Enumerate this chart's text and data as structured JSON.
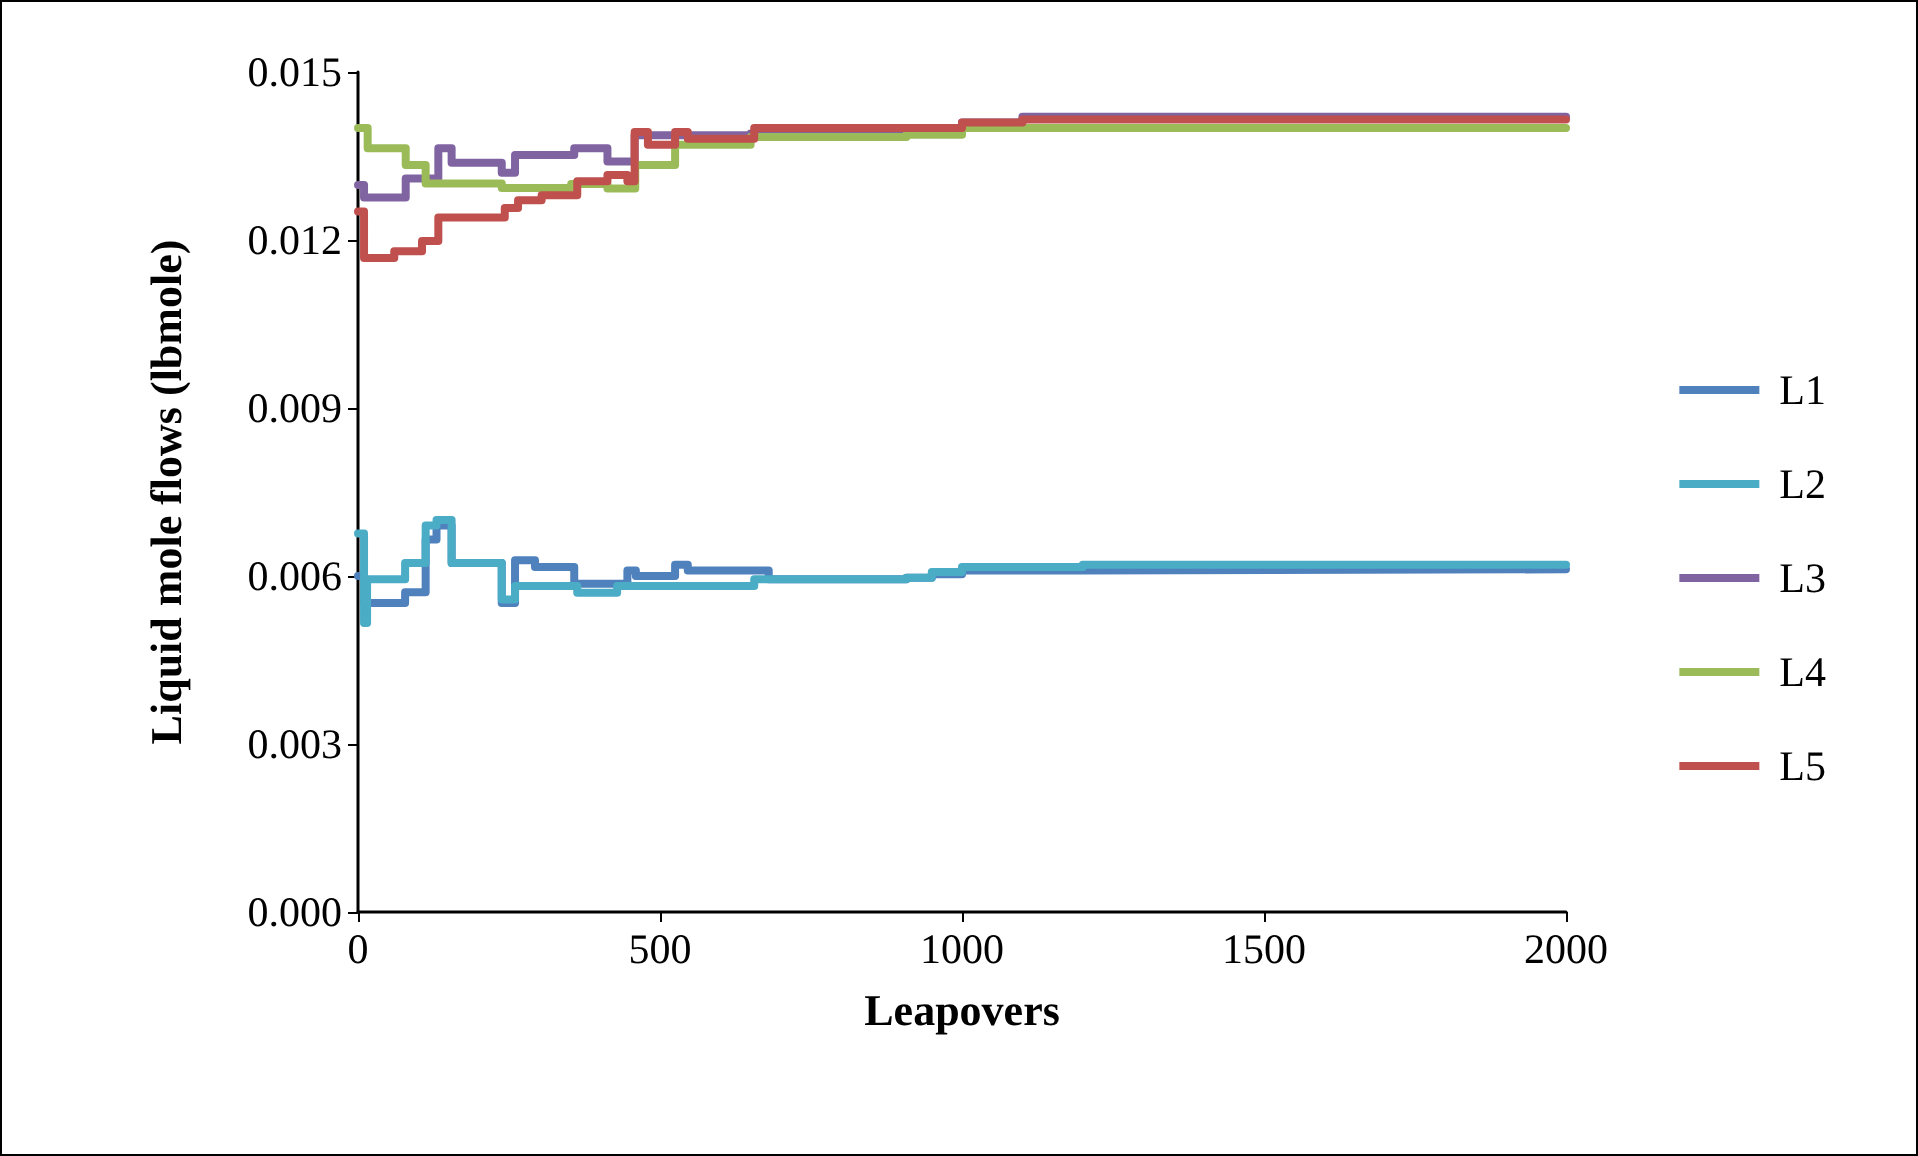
{
  "chart_data": {
    "type": "step",
    "xlabel": "Leapovers",
    "ylabel": "Liquid mole flows (lbmole)",
    "xlim": [
      0,
      2000
    ],
    "xticks": [
      0,
      500,
      1000,
      1500,
      2000
    ],
    "ylim": [
      0,
      0.015
    ],
    "yticks": [
      {
        "value": 0,
        "label": "0.000"
      },
      {
        "value": 0.003,
        "label": "0.003"
      },
      {
        "value": 0.006,
        "label": "0.006"
      },
      {
        "value": 0.009,
        "label": "0.009"
      },
      {
        "value": 0.012,
        "label": "0.012"
      },
      {
        "value": 0.015,
        "label": "0.015"
      }
    ],
    "grid": false,
    "legend": "right",
    "marker": "none",
    "line_style": "solid",
    "series": [
      {
        "name": "L1",
        "color": "#4f81bd",
        "x": [
          0,
          10,
          78,
          112,
          130,
          155,
          238,
          260,
          293,
          358,
          446,
          460,
          525,
          546,
          680,
          908,
          950,
          1000,
          1200,
          2000
        ],
        "values": [
          0.006,
          0.00552,
          0.00571,
          0.00665,
          0.0069,
          0.00623,
          0.00552,
          0.00628,
          0.00616,
          0.00586,
          0.0061,
          0.006,
          0.0062,
          0.0061,
          0.00594,
          0.00597,
          0.00603,
          0.0061,
          0.00612,
          0.00612
        ]
      },
      {
        "name": "L2",
        "color": "#4bacc6",
        "x": [
          0,
          10,
          15,
          78,
          112,
          130,
          155,
          238,
          260,
          363,
          429,
          656,
          908,
          950,
          1000,
          1200,
          2000
        ],
        "values": [
          0.00676,
          0.00516,
          0.00594,
          0.00623,
          0.0069,
          0.007,
          0.00623,
          0.00558,
          0.00582,
          0.0057,
          0.00582,
          0.00594,
          0.00597,
          0.00607,
          0.00616,
          0.0062,
          0.0062
        ]
      },
      {
        "name": "L3",
        "color": "#8064a2",
        "x": [
          0,
          10,
          79,
          133,
          155,
          238,
          260,
          358,
          413,
          458,
          650,
          908,
          1000,
          1100,
          2000
        ],
        "values": [
          0.01298,
          0.01276,
          0.0131,
          0.01364,
          0.01338,
          0.0132,
          0.01352,
          0.01364,
          0.0134,
          0.01387,
          0.0139,
          0.01395,
          0.0141,
          0.0142,
          0.0142
        ]
      },
      {
        "name": "L4",
        "color": "#9bbb59",
        "x": [
          0,
          16,
          79,
          112,
          238,
          353,
          413,
          459,
          525,
          650,
          908,
          1000,
          1100,
          2000
        ],
        "values": [
          0.014,
          0.01364,
          0.01334,
          0.01301,
          0.01293,
          0.013,
          0.01292,
          0.01334,
          0.0137,
          0.01384,
          0.01388,
          0.014,
          0.014,
          0.014
        ]
      },
      {
        "name": "L5",
        "color": "#c0504d",
        "x": [
          0,
          10,
          60,
          106,
          133,
          243,
          265,
          304,
          363,
          413,
          446,
          458,
          480,
          525,
          546,
          656,
          908,
          1000,
          1100,
          2000
        ],
        "values": [
          0.01251,
          0.01168,
          0.0118,
          0.01198,
          0.0124,
          0.01257,
          0.01271,
          0.0128,
          0.01305,
          0.01316,
          0.01305,
          0.01393,
          0.0137,
          0.01393,
          0.01381,
          0.014,
          0.014,
          0.0141,
          0.01415,
          0.01415
        ]
      }
    ]
  }
}
